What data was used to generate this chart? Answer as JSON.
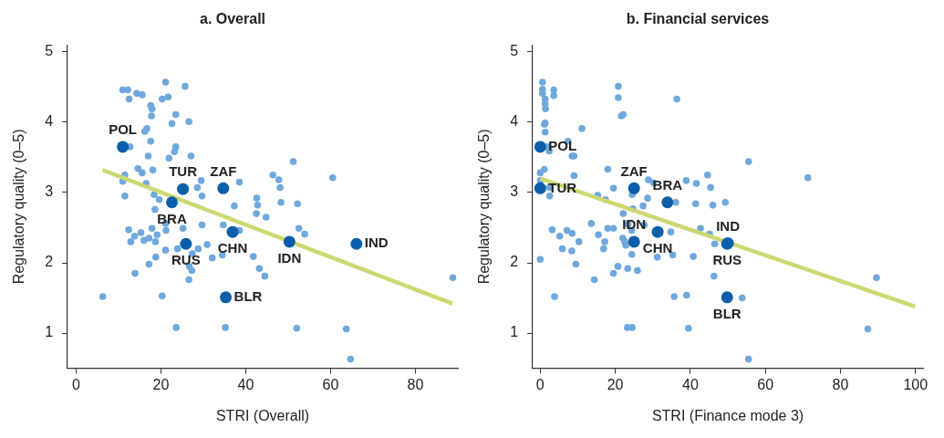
{
  "chart_data": [
    {
      "type": "scatter",
      "title": "a. Overall",
      "xlabel": "STRI (Overall)",
      "ylabel": "Regulatory quality (0–5)",
      "xlim": [
        -2,
        90
      ],
      "xticks": [
        0,
        20,
        40,
        60,
        80
      ],
      "ylim": [
        0.5,
        5.1
      ],
      "yticks": [
        1,
        2,
        3,
        4,
        5
      ],
      "grid": false,
      "legend": false,
      "marker": "circle",
      "series": [
        {
          "color": "#6fa8dc",
          "x": [
            21.1,
            25.7,
            11.0,
            12.2,
            12.5,
            14.3,
            15.6,
            20.3,
            21.7,
            17.6,
            17.9,
            17.8,
            23.5,
            22.6,
            26.6,
            16.7,
            16.2,
            17.6,
            12.7,
            23.5,
            23.2,
            17.0,
            21.9,
            27.1,
            14.6,
            15.6,
            18.1,
            11.5,
            11.0,
            16.5,
            29.5,
            28.6,
            11.5,
            18.4,
            19.6,
            29.7,
            38.5,
            42.6,
            42.8,
            37.3,
            42.5,
            44.8,
            46.4,
            18.6,
            21.1,
            21.2,
            17.9,
            12.4,
            13.8,
            15.3,
            12.9,
            16.0,
            17.2,
            19.1,
            18.7,
            25.2,
            29.7,
            34.7,
            38.5,
            30.9,
            28.8,
            23.9,
            21.1,
            18.8,
            27.4,
            32.1,
            34.5,
            17.2,
            26.7,
            27.3,
            26.6,
            13.9,
            41.8,
            43.2,
            44.5,
            6.3,
            20.3,
            23.6,
            35.2,
            51.2,
            47.8,
            48.1,
            48.3,
            52.2,
            60.5,
            52.5,
            53.9,
            88.8,
            52.0,
            63.7,
            64.7
          ],
          "values": [
            4.57,
            4.51,
            4.46,
            4.46,
            4.33,
            4.41,
            4.39,
            4.33,
            4.36,
            4.24,
            4.19,
            4.09,
            4.11,
            3.98,
            4.01,
            3.91,
            3.87,
            3.73,
            3.65,
            3.65,
            3.58,
            3.52,
            3.49,
            3.52,
            3.34,
            3.28,
            3.32,
            3.25,
            3.16,
            3.13,
            3.17,
            3.07,
            2.95,
            2.97,
            2.9,
            2.95,
            3.15,
            2.92,
            2.82,
            2.81,
            2.7,
            2.65,
            3.25,
            2.76,
            2.56,
            2.46,
            2.49,
            2.47,
            2.38,
            2.43,
            2.3,
            2.32,
            2.35,
            2.4,
            2.3,
            2.49,
            2.54,
            2.54,
            2.46,
            2.26,
            2.2,
            2.2,
            2.18,
            2.08,
            2.13,
            2.07,
            2.11,
            1.98,
            1.95,
            1.89,
            1.76,
            1.85,
            2.09,
            1.92,
            1.81,
            1.52,
            1.53,
            1.08,
            1.08,
            3.44,
            3.18,
            3.07,
            2.86,
            2.84,
            3.21,
            2.49,
            2.41,
            1.79,
            1.07,
            1.06,
            0.63
          ]
        },
        {
          "type": "line",
          "marker": "none",
          "color": "#cdd873",
          "x": [
            6.3,
            88.7
          ],
          "values": [
            3.32,
            1.42
          ]
        },
        {
          "color": "#0a5fa8",
          "x": [
            11.0,
            25.2,
            34.7,
            22.6,
            36.9,
            25.9,
            35.3,
            50.3,
            66.1
          ],
          "values": [
            3.65,
            3.05,
            3.06,
            2.86,
            2.44,
            2.27,
            1.51,
            2.3,
            2.27
          ],
          "value_labels": [
            "POL",
            "TUR",
            "ZAF",
            "BRA",
            "CHN",
            "RUS",
            "BLR",
            "IDN",
            "IND"
          ]
        }
      ]
    },
    {
      "type": "scatter",
      "title": "b. Financial services",
      "xlabel": "STRI (Finance mode 3)",
      "ylabel": "Regulatory quality (0–5)",
      "xlim": [
        -2,
        102
      ],
      "xticks": [
        0,
        20,
        40,
        60,
        80,
        100
      ],
      "ylim": [
        0.5,
        5.1
      ],
      "yticks": [
        1,
        2,
        3,
        4,
        5
      ],
      "grid": false,
      "legend": false,
      "marker": "circle",
      "series": [
        {
          "color": "#6fa8dc",
          "x": [
            0.6,
            0.6,
            0.6,
            3.6,
            3.6,
            1.3,
            1.3,
            1.4,
            1.3,
            1.1,
            1.3,
            11.1,
            20.8,
            20.8,
            21.6,
            22.1,
            36.4,
            1.8,
            2.4,
            7.4,
            8.5,
            9.0,
            1.1,
            0.0,
            9.0,
            18.0,
            0.0,
            2.5,
            2.5,
            19.5,
            15.3,
            17.4,
            24.5,
            28.8,
            30.2,
            28.6,
            27.4,
            24.7,
            22.1,
            38.9,
            41.6,
            44.6,
            45.4,
            36.1,
            41.4,
            46.0,
            49.3,
            27.7,
            23.4,
            24.4,
            18.0,
            19.5,
            13.6,
            3.2,
            5.2,
            7.1,
            8.5,
            10.3,
            5.9,
            8.4,
            9.5,
            15.5,
            17.2,
            16.9,
            22.0,
            22.5,
            22.8,
            24.4,
            31.2,
            34.8,
            35.3,
            40.8,
            42.7,
            45.1,
            46.5,
            46.3,
            0.0,
            20.7,
            23.3,
            19.5,
            25.9,
            14.4,
            3.8,
            35.7,
            39.0,
            23.2,
            24.5,
            39.5,
            55.5,
            71.3,
            53.8,
            89.6,
            87.3,
            55.5
          ],
          "values": [
            4.57,
            4.47,
            4.41,
            4.46,
            4.38,
            4.33,
            4.26,
            4.19,
            3.99,
            3.97,
            3.86,
            3.91,
            4.51,
            4.35,
            4.09,
            4.11,
            4.33,
            3.65,
            3.59,
            3.73,
            3.52,
            3.52,
            3.33,
            3.28,
            3.24,
            3.33,
            3.17,
            3.07,
            2.95,
            3.06,
            2.96,
            2.9,
            2.97,
            3.18,
            3.14,
            2.92,
            2.81,
            2.77,
            2.7,
            3.17,
            3.13,
            3.25,
            3.07,
            2.86,
            2.84,
            2.82,
            2.86,
            2.54,
            2.55,
            2.46,
            2.49,
            2.49,
            2.56,
            2.47,
            2.38,
            2.46,
            2.42,
            2.3,
            2.2,
            2.17,
            1.98,
            2.4,
            2.3,
            2.2,
            2.35,
            2.3,
            2.25,
            2.12,
            2.08,
            2.44,
            2.11,
            2.09,
            2.49,
            2.41,
            2.27,
            1.81,
            2.05,
            1.95,
            1.92,
            1.85,
            1.89,
            1.76,
            1.52,
            1.52,
            1.54,
            1.08,
            1.08,
            1.07,
            3.44,
            3.21,
            1.5,
            1.79,
            1.06,
            0.63
          ]
        },
        {
          "type": "line",
          "marker": "none",
          "color": "#cdd873",
          "x": [
            0.0,
            99.9
          ],
          "values": [
            3.2,
            1.38
          ]
        },
        {
          "color": "#0a5fa8",
          "x": [
            0.0,
            0.0,
            25.0,
            33.9,
            31.3,
            25.0,
            49.8,
            49.8,
            50.0
          ],
          "values": [
            3.65,
            3.06,
            3.06,
            2.86,
            2.44,
            2.3,
            2.27,
            1.51,
            2.28
          ],
          "value_labels": [
            "POL",
            "TUR",
            "ZAF",
            "BRA",
            "CHN",
            "IDN",
            "RUS",
            "BLR",
            "IND"
          ]
        }
      ]
    }
  ]
}
